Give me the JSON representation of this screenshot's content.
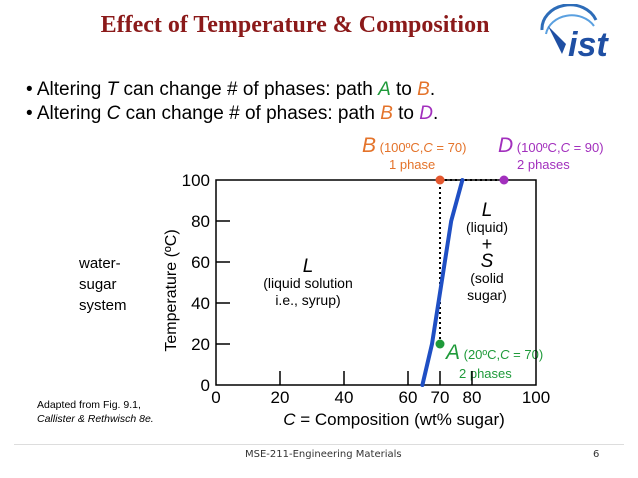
{
  "slide": {
    "title": "Effect of Temperature & Composition",
    "bullets": [
      {
        "pre": "• Altering ",
        "var": "T",
        "mid": " can change # of phases:   path ",
        "from": "A",
        "to_word": " to ",
        "to": "B",
        "end": "."
      },
      {
        "pre": "• Altering ",
        "var": "C",
        "mid": " can change # of phases:    path ",
        "from": "B",
        "to_word": " to ",
        "to": "D",
        "end": "."
      }
    ],
    "system_label": [
      "water-",
      "sugar",
      "system"
    ],
    "source": [
      "Adapted from Fig. 9.1,",
      "Callister & Rethwisch 8e."
    ],
    "footer": "MSE-211-Engineering Materials",
    "page": "6"
  },
  "points": {
    "B": {
      "letter": "B",
      "cond_open": " (100ºC,",
      "cvar": "C",
      "cond_close": " = 70)",
      "phases": "1 phase",
      "color": "#e4572e"
    },
    "D": {
      "letter": "D",
      "cond_open": " (100ºC,",
      "cvar": "C",
      "cond_close": " = 90)",
      "phases": "2 phases",
      "color": "#a22fbd"
    },
    "A": {
      "letter": "A",
      "cond_open": " (20ºC,",
      "cvar": "C",
      "cond_close": " = 70)",
      "phases": "2 phases",
      "color": "#1f9a3a"
    }
  },
  "regions": {
    "L": {
      "sym": "L",
      "line1": "(liquid solution",
      "line2": "i.e., syrup)"
    },
    "LS": {
      "sym1": "L",
      "line1": "(liquid)",
      "plus": "+",
      "sym2": "S",
      "line2": "(solid",
      "line3": "sugar)"
    }
  },
  "chart_data": {
    "type": "line",
    "title": "",
    "xlabel_var": "C",
    "xlabel_rest": " = Composition (wt% sugar)",
    "ylabel": "Temperature (ºC)",
    "xlim": [
      0,
      100
    ],
    "ylim": [
      0,
      100
    ],
    "x_ticks": [
      "0",
      "20",
      "40",
      "60",
      "70",
      "80",
      "100"
    ],
    "x_tick_values": [
      0,
      20,
      40,
      60,
      70,
      80,
      100
    ],
    "y_ticks": [
      "0",
      "20",
      "40",
      "60",
      "80",
      "100"
    ],
    "y_tick_values": [
      0,
      20,
      40,
      60,
      80,
      100
    ],
    "grid": false,
    "solubility_curve": {
      "color": "#1f4fc4",
      "x": [
        64.5,
        66,
        67.5,
        69.5,
        71.5,
        73.5,
        77
      ],
      "y": [
        0,
        10,
        20,
        40,
        60,
        80,
        100
      ]
    },
    "path_points": [
      {
        "name": "A",
        "x": 70,
        "y": 20,
        "color": "#1f9a3a"
      },
      {
        "name": "B",
        "x": 70,
        "y": 100,
        "color": "#e4572e"
      },
      {
        "name": "D",
        "x": 90,
        "y": 100,
        "color": "#a22fbd"
      }
    ]
  }
}
